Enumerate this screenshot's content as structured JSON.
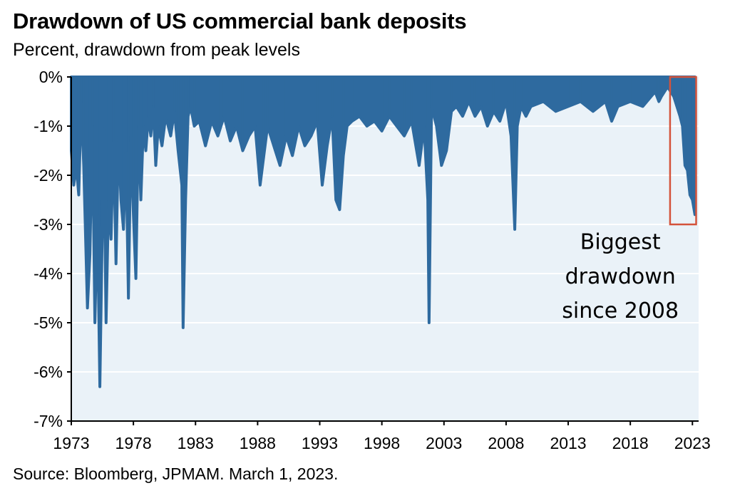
{
  "chart_data": {
    "type": "area",
    "title": "Drawdown of US commercial bank deposits",
    "subtitle": "Percent, drawdown from peak levels",
    "source": "Source: Bloomberg, JPMAM. March 1, 2023.",
    "xlabel": "",
    "ylabel": "",
    "xlim": [
      1973,
      2023.5
    ],
    "ylim": [
      -7,
      0
    ],
    "y_ticks": [
      0,
      -1,
      -2,
      -3,
      -4,
      -5,
      -6,
      -7
    ],
    "y_tick_labels": [
      "0%",
      "-1%",
      "-2%",
      "-3%",
      "-4%",
      "-5%",
      "-6%",
      "-7%"
    ],
    "x_ticks": [
      1973,
      1978,
      1983,
      1988,
      1993,
      1998,
      2003,
      2008,
      2013,
      2018,
      2023
    ],
    "x_tick_labels": [
      "1973",
      "1978",
      "1983",
      "1988",
      "1993",
      "1998",
      "2003",
      "2008",
      "2013",
      "2018",
      "2023"
    ],
    "grid": "horizontal",
    "legend": "none",
    "series": [
      {
        "x": [
          1973.0,
          1973.2,
          1973.4,
          1973.6,
          1973.8,
          1974.0,
          1974.3,
          1974.5,
          1974.7,
          1974.9,
          1975.1,
          1975.3,
          1975.5,
          1975.6,
          1975.8,
          1976.0,
          1976.2,
          1976.4,
          1976.6,
          1976.8,
          1977.0,
          1977.2,
          1977.4,
          1977.6,
          1977.8,
          1978.0,
          1978.2,
          1978.4,
          1978.6,
          1978.8,
          1979.0,
          1979.2,
          1979.4,
          1979.6,
          1979.8,
          1980.0,
          1980.3,
          1980.6,
          1981.0,
          1981.3,
          1981.6,
          1981.9,
          1982.0,
          1982.2,
          1982.4,
          1982.6,
          1982.9,
          1983.3,
          1983.8,
          1984.3,
          1984.8,
          1985.3,
          1985.8,
          1986.3,
          1986.8,
          1987.3,
          1987.8,
          1988.2,
          1988.5,
          1988.8,
          1989.3,
          1989.8,
          1990.3,
          1990.8,
          1991.3,
          1991.8,
          1992.3,
          1992.8,
          1993.2,
          1993.6,
          1994.0,
          1994.3,
          1994.6,
          1994.9,
          1995.2,
          1995.6,
          1996.2,
          1996.8,
          1997.4,
          1998.0,
          1998.6,
          1999.2,
          1999.8,
          2000.4,
          2001.0,
          2001.4,
          2001.7,
          2001.8,
          2002.0,
          2002.4,
          2002.8,
          2003.2,
          2003.6,
          2004.0,
          2004.5,
          2005.0,
          2005.5,
          2006.0,
          2006.5,
          2007.0,
          2007.5,
          2008.0,
          2008.4,
          2008.7,
          2008.9,
          2009.2,
          2009.6,
          2010.0,
          2011.0,
          2012.0,
          2013.0,
          2014.0,
          2015.0,
          2016.0,
          2016.5,
          2017.0,
          2018.0,
          2019.0,
          2020.0,
          2020.3,
          2020.5,
          2021.0,
          2021.5,
          2022.0,
          2022.2,
          2022.4,
          2022.6,
          2022.8,
          2023.0,
          2023.2
        ],
        "values": [
          -1.5,
          -2.2,
          -1.8,
          -2.4,
          -0.5,
          -1.8,
          -4.7,
          -3.6,
          -1.0,
          -5.0,
          -2.8,
          -6.3,
          -3.0,
          -1.0,
          -5.0,
          -2.5,
          -3.3,
          -1.3,
          -3.8,
          -1.2,
          -2.5,
          -3.1,
          -1.5,
          -4.5,
          -1.2,
          -2.8,
          -4.1,
          -1.0,
          -2.5,
          -1.0,
          -1.5,
          -0.8,
          -1.2,
          -0.6,
          -1.8,
          -1.0,
          -1.4,
          -0.8,
          -1.2,
          -0.7,
          -1.5,
          -2.2,
          -5.1,
          -2.5,
          -0.8,
          -0.6,
          -1.0,
          -0.9,
          -1.4,
          -0.9,
          -1.2,
          -0.8,
          -1.3,
          -1.0,
          -1.5,
          -1.2,
          -1.0,
          -2.2,
          -1.6,
          -1.0,
          -1.4,
          -1.8,
          -1.2,
          -1.6,
          -1.0,
          -1.4,
          -1.2,
          -0.9,
          -2.2,
          -1.4,
          -0.8,
          -2.5,
          -2.7,
          -1.6,
          -1.0,
          -0.9,
          -0.8,
          -1.0,
          -0.9,
          -1.1,
          -0.8,
          -1.0,
          -1.2,
          -0.9,
          -1.8,
          -1.0,
          -2.5,
          -5.0,
          -0.6,
          -1.0,
          -1.8,
          -1.5,
          -0.7,
          -0.6,
          -0.8,
          -0.5,
          -0.8,
          -0.6,
          -1.0,
          -0.7,
          -0.9,
          -0.5,
          -1.2,
          -3.1,
          -1.0,
          -0.6,
          -0.8,
          -0.6,
          -0.5,
          -0.7,
          -0.6,
          -0.5,
          -0.7,
          -0.5,
          -0.9,
          -0.6,
          -0.5,
          -0.6,
          -0.3,
          -0.5,
          -0.4,
          -0.2,
          -0.4,
          -0.8,
          -1.0,
          -1.8,
          -1.9,
          -2.4,
          -2.5,
          -2.8
        ]
      }
    ],
    "annotations": [
      {
        "text": "Biggest",
        "x": 2017.2,
        "y": -3.5
      },
      {
        "text": "drawdown",
        "x": 2017.2,
        "y": -4.2
      },
      {
        "text": "since 2008",
        "x": 2017.2,
        "y": -4.9
      }
    ],
    "highlight_box": {
      "x_range": [
        2021.2,
        2023.3
      ],
      "y_range": [
        0,
        -3.0
      ],
      "color": "#D4533B"
    },
    "colors": {
      "fill": "#2E6A9F",
      "plot_background": "#EAF2F8",
      "grid": "#FFFFFF",
      "axis": "#000000"
    }
  }
}
